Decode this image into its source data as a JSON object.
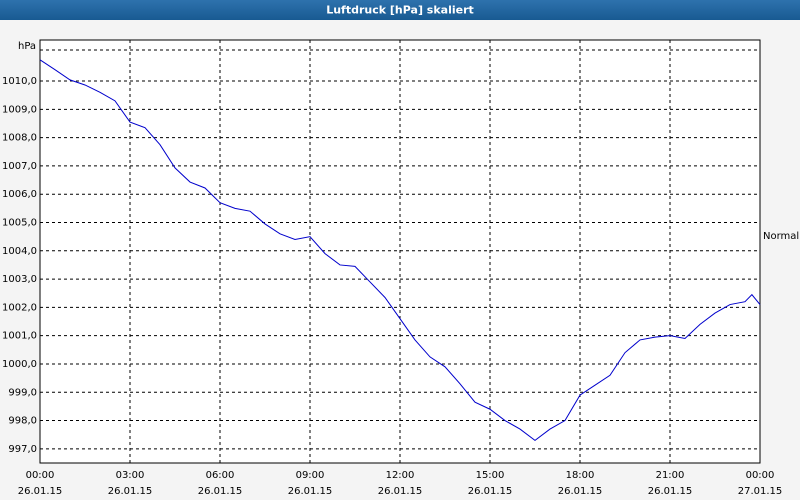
{
  "chart_data": {
    "type": "line",
    "title": "Luftdruck [hPa] skaliert",
    "y_label": "hPa",
    "annotation": "Normal",
    "x": [
      0,
      0.5,
      1,
      1.5,
      2,
      2.5,
      3,
      3.5,
      4,
      4.5,
      5,
      5.5,
      6,
      6.5,
      7,
      7.5,
      8,
      8.5,
      9,
      9.5,
      10,
      10.5,
      11,
      11.5,
      12,
      12.5,
      13,
      13.5,
      14,
      14.5,
      15,
      15.5,
      16,
      16.5,
      17,
      17.5,
      18,
      18.5,
      19,
      19.5,
      20,
      20.5,
      21,
      21.5,
      22,
      22.5,
      23,
      23.5,
      23.73,
      24
    ],
    "series": [
      {
        "name": "Luftdruck",
        "color": "#0000cc",
        "values": [
          1010.75,
          1010.4,
          1010.04,
          1009.86,
          1009.6,
          1009.3,
          1008.55,
          1008.35,
          1007.75,
          1006.93,
          1006.43,
          1006.22,
          1005.7,
          1005.5,
          1005.4,
          1004.95,
          1004.6,
          1004.4,
          1004.5,
          1003.9,
          1003.5,
          1003.45,
          1002.9,
          1002.35,
          1001.6,
          1000.85,
          1000.25,
          999.9,
          999.3,
          998.65,
          998.4,
          998.0,
          997.7,
          997.3,
          997.7,
          998.0,
          998.9,
          999.25,
          999.6,
          1000.4,
          1000.85,
          1000.95,
          1001.0,
          1000.9,
          1001.4,
          1001.8,
          1002.1,
          1002.2,
          1002.45,
          1002.1
        ]
      }
    ],
    "xlim": [
      0,
      24
    ],
    "ylim": [
      996.5,
      1011.45
    ],
    "xticks": [
      {
        "value": 0,
        "label": [
          "00:00",
          "26.01.15"
        ]
      },
      {
        "value": 3,
        "label": [
          "03:00",
          "26.01.15"
        ]
      },
      {
        "value": 6,
        "label": [
          "06:00",
          "26.01.15"
        ]
      },
      {
        "value": 9,
        "label": [
          "09:00",
          "26.01.15"
        ]
      },
      {
        "value": 12,
        "label": [
          "12:00",
          "26.01.15"
        ]
      },
      {
        "value": 15,
        "label": [
          "15:00",
          "26.01.15"
        ]
      },
      {
        "value": 18,
        "label": [
          "18:00",
          "26.01.15"
        ]
      },
      {
        "value": 21,
        "label": [
          "21:00",
          "26.01.15"
        ]
      },
      {
        "value": 24,
        "label": [
          "00:00",
          "27.01.15"
        ]
      }
    ],
    "yticks": [
      {
        "value": 997,
        "label": "997,0"
      },
      {
        "value": 998,
        "label": "998,0"
      },
      {
        "value": 999,
        "label": "999,0"
      },
      {
        "value": 1000,
        "label": "1000,0"
      },
      {
        "value": 1001,
        "label": "1001,0"
      },
      {
        "value": 1002,
        "label": "1002,0"
      },
      {
        "value": 1003,
        "label": "1003,0"
      },
      {
        "value": 1004,
        "label": "1004,0"
      },
      {
        "value": 1005,
        "label": "1005,0"
      },
      {
        "value": 1006,
        "label": "1006,0"
      },
      {
        "value": 1007,
        "label": "1007,0"
      },
      {
        "value": 1008,
        "label": "1008,0"
      },
      {
        "value": 1009,
        "label": "1009,0"
      },
      {
        "value": 1010,
        "label": "1010,0"
      }
    ],
    "grid": true
  }
}
